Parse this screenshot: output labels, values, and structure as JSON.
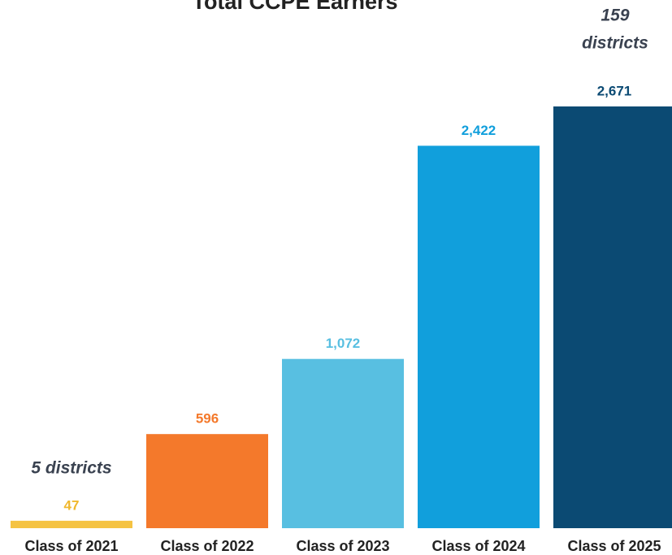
{
  "chart_data": {
    "type": "bar",
    "title": "Total CCPE Earners",
    "categories": [
      "Class of 2021",
      "Class of 2022",
      "Class of 2023",
      "Class of 2024",
      "Class of 2025"
    ],
    "values": [
      47,
      596,
      1072,
      2422,
      2671
    ],
    "value_labels": [
      "47",
      "596",
      "1,072",
      "2,422",
      "2,671"
    ],
    "colors": [
      "#f5c342",
      "#f4792b",
      "#58bfe1",
      "#119fdc",
      "#0b4a73"
    ],
    "annotations": [
      {
        "lines": [
          "5 districts"
        ]
      },
      {
        "lines": [
          "159",
          "districts"
        ]
      }
    ]
  }
}
